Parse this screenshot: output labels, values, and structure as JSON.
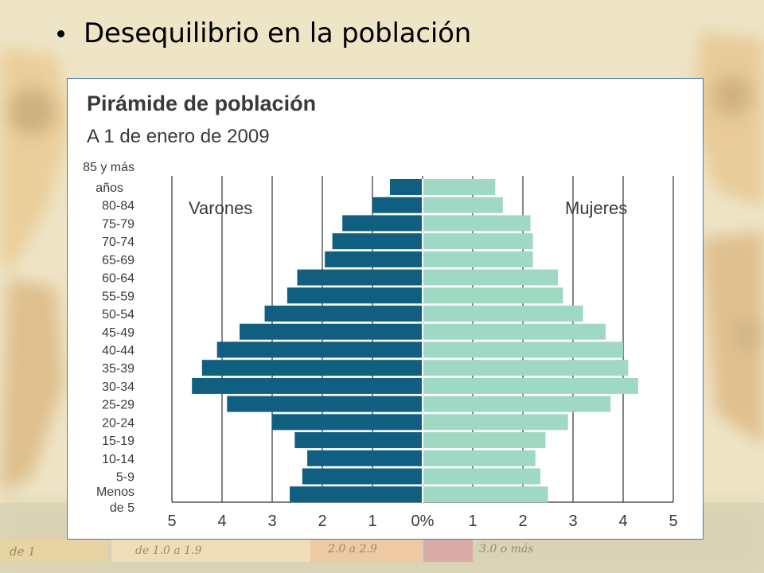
{
  "slide": {
    "bullet": "Desequilibrio en la población"
  },
  "background_map": {
    "legend_items": [
      "de 1",
      "de 1.0 a 1.9",
      "2.0 a 2.9",
      "3.0 o más"
    ]
  },
  "chart_data": {
    "type": "bar",
    "orientation": "horizontal",
    "title": "Pirámide de población",
    "subtitle": "A 1 de enero de 2009",
    "categories": [
      "85 y más años",
      "80-84",
      "75-79",
      "70-74",
      "65-69",
      "60-64",
      "55-59",
      "50-54",
      "45-49",
      "40-44",
      "35-39",
      "30-34",
      "25-29",
      "20-24",
      "15-19",
      "10-14",
      "5-9",
      "Menos de 5"
    ],
    "category_labels": [
      [
        "85 y más",
        "años"
      ],
      [
        "80-84"
      ],
      [
        "75-79"
      ],
      [
        "70-74"
      ],
      [
        "65-69"
      ],
      [
        "60-64"
      ],
      [
        "55-59"
      ],
      [
        "50-54"
      ],
      [
        "45-49"
      ],
      [
        "40-44"
      ],
      [
        "35-39"
      ],
      [
        "30-34"
      ],
      [
        "25-29"
      ],
      [
        "20-24"
      ],
      [
        "15-19"
      ],
      [
        "10-14"
      ],
      [
        "5-9"
      ],
      [
        "Menos",
        "de 5"
      ]
    ],
    "series": [
      {
        "name": "Varones",
        "color": "#105e80",
        "values": [
          0.65,
          1.0,
          1.6,
          1.8,
          1.95,
          2.5,
          2.7,
          3.15,
          3.65,
          4.1,
          4.4,
          4.6,
          3.9,
          3.0,
          2.55,
          2.3,
          2.4,
          2.65
        ]
      },
      {
        "name": "Mujeres",
        "color": "#9fd8c3",
        "values": [
          1.45,
          1.6,
          2.15,
          2.2,
          2.2,
          2.7,
          2.8,
          3.2,
          3.65,
          4.0,
          4.1,
          4.3,
          3.75,
          2.9,
          2.45,
          2.25,
          2.35,
          2.5
        ]
      }
    ],
    "x_ticks": [
      "5",
      "4",
      "3",
      "2",
      "1",
      "0%",
      "1",
      "2",
      "3",
      "4",
      "5"
    ],
    "xlim": [
      -5,
      5
    ],
    "grid": true
  }
}
